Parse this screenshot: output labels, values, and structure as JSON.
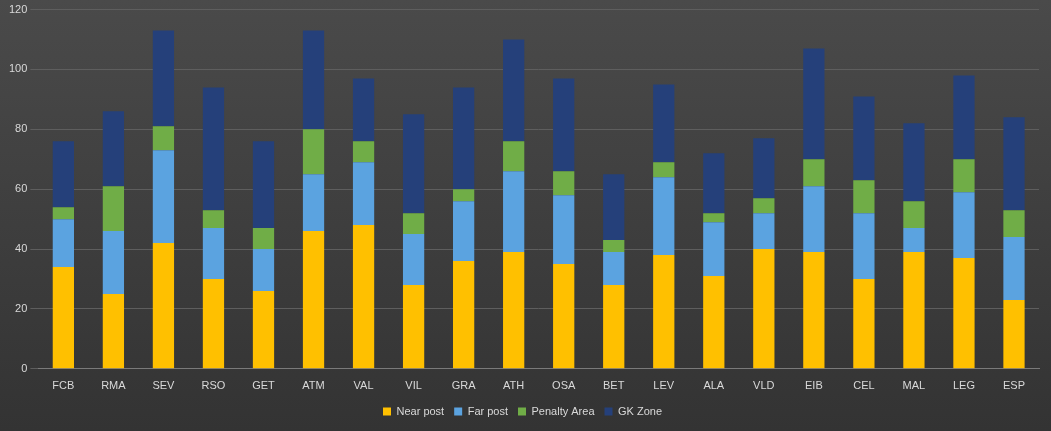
{
  "chart_data": {
    "type": "bar",
    "stacked": true,
    "grid": true,
    "legend": "bottom",
    "categories": [
      "FCB",
      "RMA",
      "SEV",
      "RSO",
      "GET",
      "ATM",
      "VAL",
      "VIL",
      "GRA",
      "ATH",
      "OSA",
      "BET",
      "LEV",
      "ALA",
      "VLD",
      "EIB",
      "CEL",
      "MAL",
      "LEG",
      "ESP"
    ],
    "ylim": [
      0,
      120
    ],
    "yticks": [
      0,
      20,
      40,
      60,
      80,
      100,
      120
    ],
    "series": [
      {
        "name": "Near post",
        "color": "#ffc000",
        "values": [
          34,
          25,
          42,
          30,
          26,
          46,
          48,
          28,
          36,
          39,
          35,
          28,
          38,
          31,
          40,
          39,
          30,
          39,
          37,
          23
        ]
      },
      {
        "name": "Far post",
        "color": "#5ba3e0",
        "values": [
          16,
          21,
          31,
          17,
          14,
          19,
          21,
          17,
          20,
          27,
          23,
          11,
          26,
          18,
          12,
          22,
          22,
          8,
          22,
          21
        ]
      },
      {
        "name": "Penalty Area",
        "color": "#70ad47",
        "values": [
          4,
          15,
          8,
          6,
          7,
          15,
          7,
          7,
          4,
          10,
          8,
          4,
          5,
          3,
          5,
          9,
          11,
          9,
          11,
          9
        ]
      },
      {
        "name": "GK Zone",
        "color": "#25407a",
        "values": [
          22,
          25,
          32,
          41,
          29,
          33,
          21,
          33,
          34,
          34,
          31,
          22,
          26,
          20,
          20,
          37,
          28,
          26,
          28,
          31
        ]
      }
    ]
  }
}
